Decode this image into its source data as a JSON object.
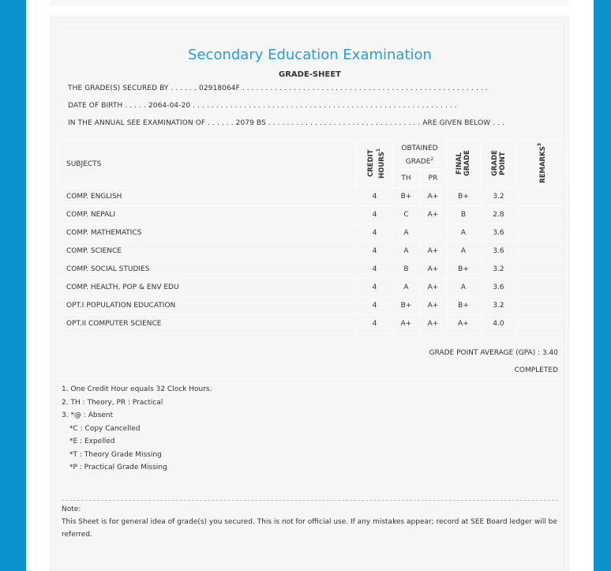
{
  "title": "Secondary Education Examination",
  "subtitle": "GRADE-SHEET",
  "info": {
    "secured_by": "THE GRADE(S) SECURED BY . . . . . . 02918064F . . . . . . . . . . . . . . . . . . . . . . . . . . . . . . . . . . . . . . . . . . . . . . . . . . . . .",
    "dob": "DATE OF BIRTH . . . . . 2064-04-20 . . . . . . . . . . . . . . . . . . . . . . . . . . . . . . . . . . . . . . . . . . . . . . . . . . . . . . . . .",
    "exam": "IN THE ANNUAL SEE EXAMINATION OF . . . . . . 2079 BS . . . . . . . . . . . . . . . . . . . . . . . . . . . . . . . . . ARE GIVEN BELOW . . ."
  },
  "headers": {
    "subjects": "SUBJECTS",
    "credit": "CREDIT HOURS",
    "credit_sup": "1",
    "obtained": "OBTAINED GRADE",
    "obtained_sup": "2",
    "th": "TH",
    "pr": "PR",
    "final": "FINAL GRADE",
    "point": "GRADE POINT",
    "remarks": "REMARKS",
    "remarks_sup": "3"
  },
  "rows": [
    {
      "subject": "COMP. ENGLISH",
      "credit": "4",
      "th": "B+",
      "pr": "A+",
      "final": "B+",
      "point": "3.2",
      "remarks": ""
    },
    {
      "subject": "COMP. NEPALI",
      "credit": "4",
      "th": "C",
      "pr": "A+",
      "final": "B",
      "point": "2.8",
      "remarks": ""
    },
    {
      "subject": "COMP. MATHEMATICS",
      "credit": "4",
      "th": "A",
      "pr": "",
      "final": "A",
      "point": "3.6",
      "remarks": ""
    },
    {
      "subject": "COMP. SCIENCE",
      "credit": "4",
      "th": "A",
      "pr": "A+",
      "final": "A",
      "point": "3.6",
      "remarks": ""
    },
    {
      "subject": "COMP. SOCIAL STUDIES",
      "credit": "4",
      "th": "B",
      "pr": "A+",
      "final": "B+",
      "point": "3.2",
      "remarks": ""
    },
    {
      "subject": "COMP. HEALTH, POP & ENV EDU",
      "credit": "4",
      "th": "A",
      "pr": "A+",
      "final": "A",
      "point": "3.6",
      "remarks": ""
    },
    {
      "subject": "OPT.I POPULATION EDUCATION",
      "credit": "4",
      "th": "B+",
      "pr": "A+",
      "final": "B+",
      "point": "3.2",
      "remarks": ""
    },
    {
      "subject": "OPT.II COMPUTER SCIENCE",
      "credit": "4",
      "th": "A+",
      "pr": "A+",
      "final": "A+",
      "point": "4.0",
      "remarks": ""
    }
  ],
  "gpa": "GRADE POINT AVERAGE (GPA) : 3.40",
  "status": "COMPLETED",
  "footnotes": [
    "1. One Credit Hour equals 32 Clock Hours.",
    "2. TH : Theory, PR : Practical",
    "3. *@ : Absent",
    "   *C : Copy Cancelled",
    "   *E : Expelled",
    "   *T : Theory Grade Missing",
    "   *P : Practical Grade Missing"
  ],
  "note_label": "Note:",
  "note_text": "This Sheet is for general idea of grade(s) you secured. This is not for official use. If any mistakes appear; record at SEE Board ledger will be referred."
}
